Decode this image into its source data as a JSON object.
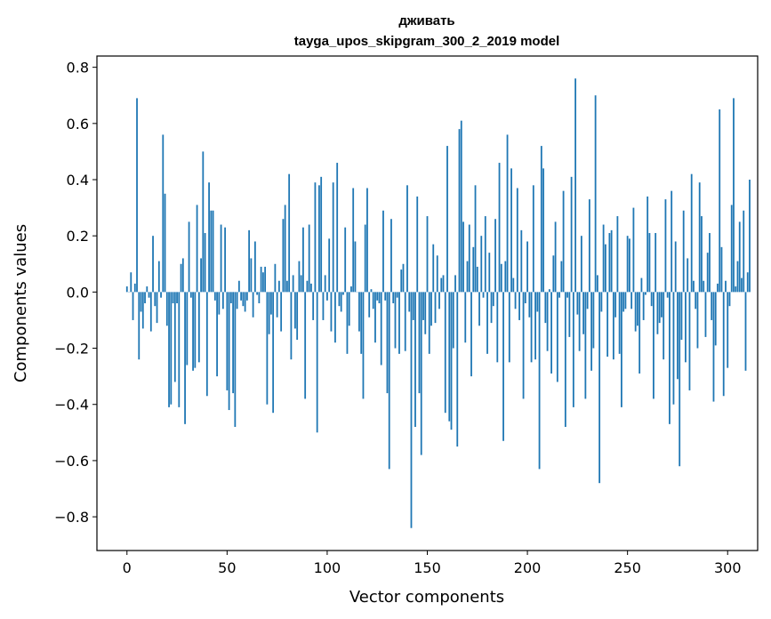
{
  "chart_data": {
    "type": "bar",
    "title": "дживать",
    "subtitle": "tayga_upos_skipgram_300_2_2019 model",
    "xlabel": "Vector components",
    "ylabel": "Components values",
    "xlim": [
      -15,
      315
    ],
    "ylim": [
      -0.92,
      0.84
    ],
    "xticks": [
      0,
      50,
      100,
      150,
      200,
      250,
      300
    ],
    "xtick_labels": [
      "0",
      "50",
      "100",
      "150",
      "200",
      "250",
      "300"
    ],
    "yticks": [
      -0.8,
      -0.6,
      -0.4,
      -0.2,
      0.0,
      0.2,
      0.4,
      0.6,
      0.8
    ],
    "ytick_labels": [
      "−0.8",
      "−0.6",
      "−0.4",
      "−0.2",
      "0.0",
      "0.2",
      "0.4",
      "0.6",
      "0.8"
    ],
    "grid": false,
    "bar_color": "#1f77b4",
    "values": [
      0.02,
      0.0,
      0.07,
      -0.1,
      0.03,
      0.69,
      -0.24,
      -0.07,
      -0.13,
      -0.04,
      0.02,
      -0.02,
      -0.14,
      0.2,
      -0.05,
      -0.11,
      0.11,
      -0.02,
      0.56,
      0.35,
      -0.12,
      -0.41,
      -0.4,
      -0.04,
      -0.32,
      -0.04,
      -0.41,
      0.1,
      0.12,
      -0.47,
      -0.26,
      0.25,
      -0.02,
      -0.28,
      -0.27,
      0.31,
      -0.25,
      0.12,
      0.5,
      0.21,
      -0.37,
      0.39,
      0.29,
      0.29,
      -0.03,
      -0.3,
      -0.08,
      0.24,
      -0.06,
      0.23,
      -0.35,
      -0.42,
      -0.04,
      -0.36,
      -0.48,
      -0.06,
      0.04,
      -0.03,
      -0.05,
      -0.07,
      -0.03,
      0.22,
      0.12,
      -0.09,
      0.18,
      -0.01,
      -0.04,
      0.09,
      0.07,
      0.09,
      -0.4,
      -0.15,
      -0.08,
      -0.43,
      0.1,
      -0.09,
      0.04,
      -0.14,
      0.26,
      0.31,
      0.04,
      0.42,
      -0.24,
      0.06,
      -0.13,
      -0.17,
      0.11,
      0.06,
      0.23,
      -0.38,
      0.04,
      0.24,
      0.03,
      -0.1,
      0.39,
      -0.5,
      0.38,
      0.41,
      -0.1,
      0.06,
      -0.03,
      0.19,
      -0.14,
      0.39,
      -0.18,
      0.46,
      -0.05,
      -0.07,
      -0.01,
      0.23,
      -0.22,
      -0.12,
      0.02,
      0.37,
      0.18,
      0.0,
      -0.14,
      -0.22,
      -0.38,
      0.24,
      0.37,
      -0.09,
      0.01,
      -0.06,
      -0.18,
      -0.03,
      -0.04,
      -0.26,
      0.29,
      -0.03,
      -0.36,
      -0.63,
      0.26,
      -0.04,
      -0.2,
      -0.02,
      -0.22,
      0.08,
      0.1,
      -0.21,
      0.38,
      -0.07,
      -0.84,
      -0.1,
      -0.48,
      0.34,
      -0.36,
      -0.58,
      -0.1,
      -0.15,
      0.27,
      -0.22,
      -0.12,
      0.17,
      -0.11,
      0.13,
      -0.06,
      0.05,
      0.06,
      -0.43,
      0.52,
      -0.46,
      -0.49,
      -0.2,
      0.06,
      -0.55,
      0.58,
      0.61,
      0.25,
      -0.18,
      0.11,
      0.24,
      -0.3,
      0.16,
      0.38,
      0.09,
      -0.12,
      0.2,
      -0.02,
      0.27,
      -0.22,
      0.14,
      -0.11,
      -0.05,
      0.26,
      -0.25,
      0.46,
      0.1,
      -0.53,
      0.11,
      0.56,
      -0.25,
      0.44,
      0.05,
      -0.06,
      0.37,
      -0.1,
      0.22,
      -0.38,
      -0.04,
      0.18,
      -0.09,
      -0.25,
      0.38,
      -0.24,
      -0.07,
      -0.63,
      0.52,
      0.44,
      -0.11,
      -0.21,
      0.01,
      -0.29,
      0.13,
      0.25,
      -0.32,
      -0.02,
      0.11,
      0.36,
      -0.48,
      -0.02,
      -0.16,
      0.41,
      -0.41,
      0.76,
      -0.08,
      -0.21,
      0.2,
      -0.15,
      -0.38,
      -0.06,
      0.33,
      -0.28,
      -0.2,
      0.7,
      0.06,
      -0.68,
      -0.07,
      0.24,
      0.17,
      -0.23,
      0.21,
      0.22,
      -0.24,
      -0.09,
      0.27,
      -0.22,
      -0.41,
      -0.07,
      -0.06,
      0.2,
      0.19,
      -0.06,
      0.3,
      -0.14,
      -0.12,
      -0.29,
      0.05,
      -0.1,
      -0.01,
      0.34,
      0.21,
      -0.05,
      -0.38,
      0.21,
      -0.15,
      -0.11,
      -0.09,
      -0.24,
      0.33,
      -0.02,
      -0.47,
      0.36,
      -0.4,
      0.18,
      -0.31,
      -0.62,
      -0.17,
      0.29,
      -0.25,
      0.12,
      -0.35,
      0.42,
      0.04,
      -0.06,
      -0.2,
      0.39,
      0.27,
      0.04,
      -0.16,
      0.14,
      0.21,
      -0.1,
      -0.39,
      -0.19,
      0.03,
      0.65,
      0.16,
      -0.37,
      0.04,
      -0.27,
      -0.05,
      0.31,
      0.69,
      0.02,
      0.11,
      0.25,
      0.05,
      0.29,
      -0.28,
      0.07,
      0.4
    ]
  }
}
